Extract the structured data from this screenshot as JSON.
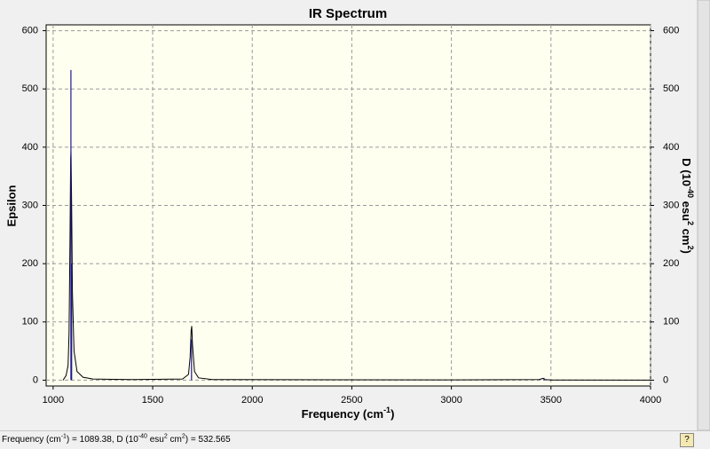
{
  "chart_data": {
    "type": "line",
    "title": "IR Spectrum",
    "xlabel": [
      "Frequency (cm",
      "-1",
      ")"
    ],
    "ylabel": "Epsilon",
    "y2label": [
      "D (10",
      "-40",
      " esu",
      "2",
      " cm",
      "2",
      ")"
    ],
    "xlim": [
      965,
      4000
    ],
    "xticks": [
      1000,
      1500,
      2000,
      2500,
      3000,
      3500,
      4000
    ],
    "ylim": [
      -10,
      610
    ],
    "yticks": [
      0,
      100,
      200,
      300,
      400,
      500,
      600
    ],
    "y2lim": [
      -10,
      610
    ],
    "y2ticks": [
      0,
      100,
      200,
      300,
      400,
      500,
      600
    ],
    "grid": true,
    "series": [
      {
        "color": "#000000",
        "x": [
          1050,
          1065,
          1075,
          1080,
          1085,
          1088,
          1090,
          1093,
          1097,
          1105,
          1120,
          1150,
          1200,
          1400,
          1650,
          1680,
          1688,
          1693,
          1696,
          1700,
          1710,
          1730,
          1800,
          3000,
          3440,
          3460,
          3470,
          3500,
          4000
        ],
        "values": [
          0,
          8,
          25,
          80,
          250,
          380,
          393,
          300,
          150,
          50,
          15,
          5,
          2,
          1,
          2,
          10,
          40,
          85,
          93,
          60,
          15,
          4,
          1,
          0.5,
          1,
          3,
          1,
          0.3,
          0
        ]
      },
      {
        "color": "#1a1a8c",
        "axis": "y2",
        "style": "sticks",
        "x": [
          1089.38,
          1093,
          1695,
          3465
        ],
        "values": [
          532.565,
          200,
          70,
          4
        ]
      }
    ]
  },
  "status_bar": {
    "parts": [
      "Frequency (cm",
      "-1",
      ") = ",
      ", D (10",
      "-40",
      " esu",
      "2",
      " cm",
      "2",
      ") = "
    ]
  }
}
